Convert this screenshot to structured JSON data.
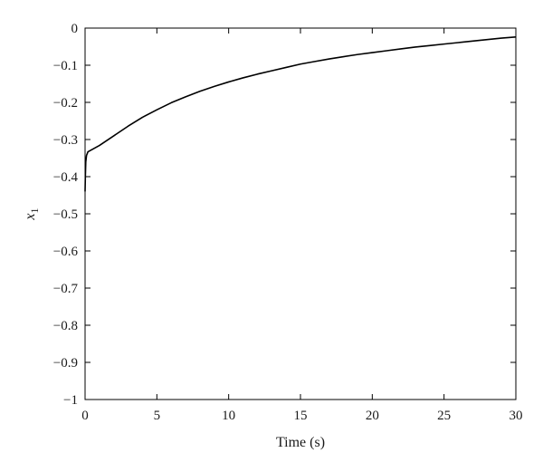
{
  "chart_data": {
    "type": "line",
    "title": "",
    "xlabel": "Time (s)",
    "ylabel": "x",
    "ylabel_subscript": "1",
    "xlim": [
      0,
      30
    ],
    "ylim": [
      -1,
      0
    ],
    "grid": false,
    "x_ticks": [
      0,
      5,
      10,
      15,
      20,
      25,
      30
    ],
    "x_tick_labels": [
      "0",
      "5",
      "10",
      "15",
      "20",
      "25",
      "30"
    ],
    "y_ticks": [
      0,
      -0.1,
      -0.2,
      -0.3,
      -0.4,
      -0.5,
      -0.6,
      -0.7,
      -0.8,
      -0.9,
      -1
    ],
    "y_tick_labels": [
      "0",
      "−0.1",
      "−0.2",
      "−0.3",
      "−0.4",
      "−0.5",
      "−0.6",
      "−0.7",
      "−0.8",
      "−0.9",
      "−1"
    ],
    "series": [
      {
        "color": "#000000",
        "x": [
          0,
          0.02,
          0.05,
          0.1,
          0.2,
          1,
          2,
          3,
          4,
          5,
          6,
          7,
          8,
          9,
          10,
          11,
          12,
          13,
          14,
          15,
          16,
          17,
          18,
          19,
          20,
          21,
          22,
          23,
          24,
          25,
          26,
          27,
          28,
          29,
          30
        ],
        "y": [
          -0.44,
          -0.4,
          -0.36,
          -0.343,
          -0.333,
          -0.316,
          -0.29,
          -0.264,
          -0.24,
          -0.22,
          -0.201,
          -0.185,
          -0.17,
          -0.157,
          -0.145,
          -0.134,
          -0.124,
          -0.115,
          -0.106,
          -0.097,
          -0.09,
          -0.083,
          -0.077,
          -0.071,
          -0.066,
          -0.061,
          -0.056,
          -0.051,
          -0.047,
          -0.043,
          -0.039,
          -0.035,
          -0.031,
          -0.027,
          -0.024
        ]
      }
    ]
  }
}
